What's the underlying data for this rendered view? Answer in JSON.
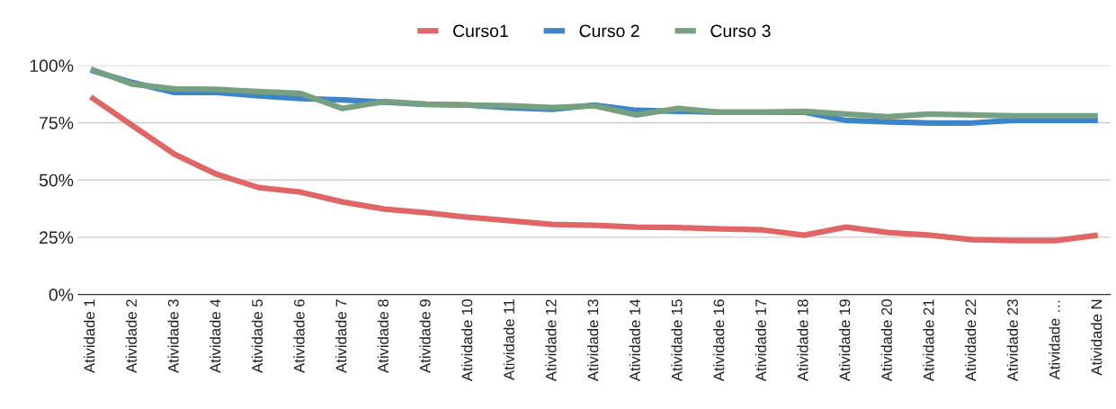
{
  "chart_data": {
    "type": "line",
    "categories": [
      "Atividade 1",
      "Atividade 2",
      "Atividade 3",
      "Atividade 4",
      "Atividade 5",
      "Atividade 6",
      "Atividade 7",
      "Atividade 8",
      "Atividade 9",
      "Atividade 10",
      "Atividade 11",
      "Atividade 12",
      "Atividade 13",
      "Atividade 14",
      "Atividade 15",
      "Atividade 16",
      "Atividade 17",
      "Atividade 18",
      "Atividade 19",
      "Atividade 20",
      "Atividade 21",
      "Atividade 22",
      "Atividade 23",
      "Atividade …",
      "Atividade N"
    ],
    "series": [
      {
        "name": "Curso1",
        "color": "#e06666",
        "values": [
          86.3,
          73.7,
          61.2,
          52.5,
          46.7,
          44.7,
          40.4,
          37.3,
          35.7,
          33.7,
          32.2,
          30.6,
          30.2,
          29.4,
          29.2,
          28.6,
          28.2,
          25.9,
          29.4,
          27.1,
          25.9,
          23.9,
          23.5,
          23.5,
          25.9
        ]
      },
      {
        "name": "Curso 2",
        "color": "#3d85c6",
        "values": [
          98,
          92.5,
          88.2,
          88.2,
          86.7,
          85.5,
          85,
          84,
          83,
          82.7,
          81.5,
          80.8,
          82.7,
          80.4,
          80,
          79.6,
          79.6,
          79.6,
          76,
          75.3,
          74.9,
          74.9,
          76,
          76,
          76
        ]
      },
      {
        "name": "Curso 3",
        "color": "#76a080",
        "values": [
          98.4,
          91.8,
          89.8,
          89.6,
          88.6,
          87.8,
          81.2,
          84.3,
          83.1,
          82.7,
          82.4,
          81.6,
          82.4,
          78.4,
          81.2,
          79.6,
          79.6,
          80,
          78.8,
          77.6,
          78.8,
          78.4,
          78,
          78,
          78
        ]
      }
    ],
    "ylim": [
      0,
      100
    ],
    "yticks": [
      {
        "value": 0,
        "label": "0%"
      },
      {
        "value": 25,
        "label": "25%"
      },
      {
        "value": 50,
        "label": "50%"
      },
      {
        "value": 75,
        "label": "75%"
      },
      {
        "value": 100,
        "label": "100%"
      }
    ],
    "grid": "y",
    "legend": "top",
    "marker": "none",
    "line_style": "solid"
  }
}
